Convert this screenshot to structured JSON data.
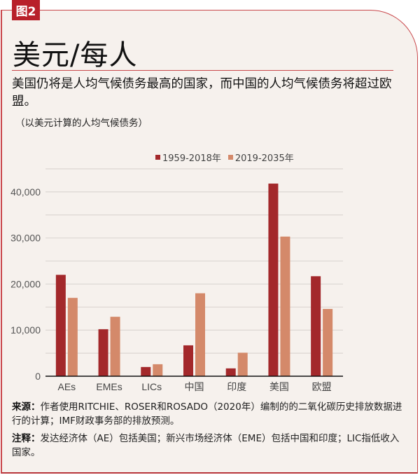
{
  "figure_tag": "图2",
  "title": "美元/每人",
  "subtitle": "美国仍将是人均气候债务最高的国家，而中国的人均气候债务将超过欧盟。",
  "unit_note": "（以美元计算的人均气候债务）",
  "chart_data": {
    "type": "bar",
    "categories": [
      "AEs",
      "EMEs",
      "LICs",
      "中国",
      "印度",
      "美国",
      "欧盟"
    ],
    "series": [
      {
        "name": "1959-2018年",
        "color": "#a3282b",
        "values": [
          22000,
          10200,
          2000,
          6700,
          1700,
          41800,
          21700
        ]
      },
      {
        "name": "2019-2035年",
        "color": "#d4896a",
        "values": [
          17000,
          12900,
          2600,
          18000,
          5100,
          30300,
          14600
        ]
      }
    ],
    "ylim": [
      0,
      45000
    ],
    "yticks": [
      0,
      10000,
      20000,
      30000,
      40000
    ],
    "ytick_labels": [
      "0",
      "10,000",
      "20,000",
      "30,000",
      "40,000"
    ],
    "grid_step": 5000,
    "grid": true,
    "legend_position": "top-center",
    "xlabel": "",
    "ylabel": ""
  },
  "notes": {
    "source_label": "来源：",
    "source_text": "作者使用RITCHIE、ROSER和ROSADO（2020年）编制的的二氧化碳历史排放数据进行的计算；IMF财政事务部的排放预测。",
    "note_label": "注释：",
    "note_text": "发达经济体（AE）包括美国；新兴市场经济体（EME）包括中国和印度；LIC指低收入国家。"
  }
}
